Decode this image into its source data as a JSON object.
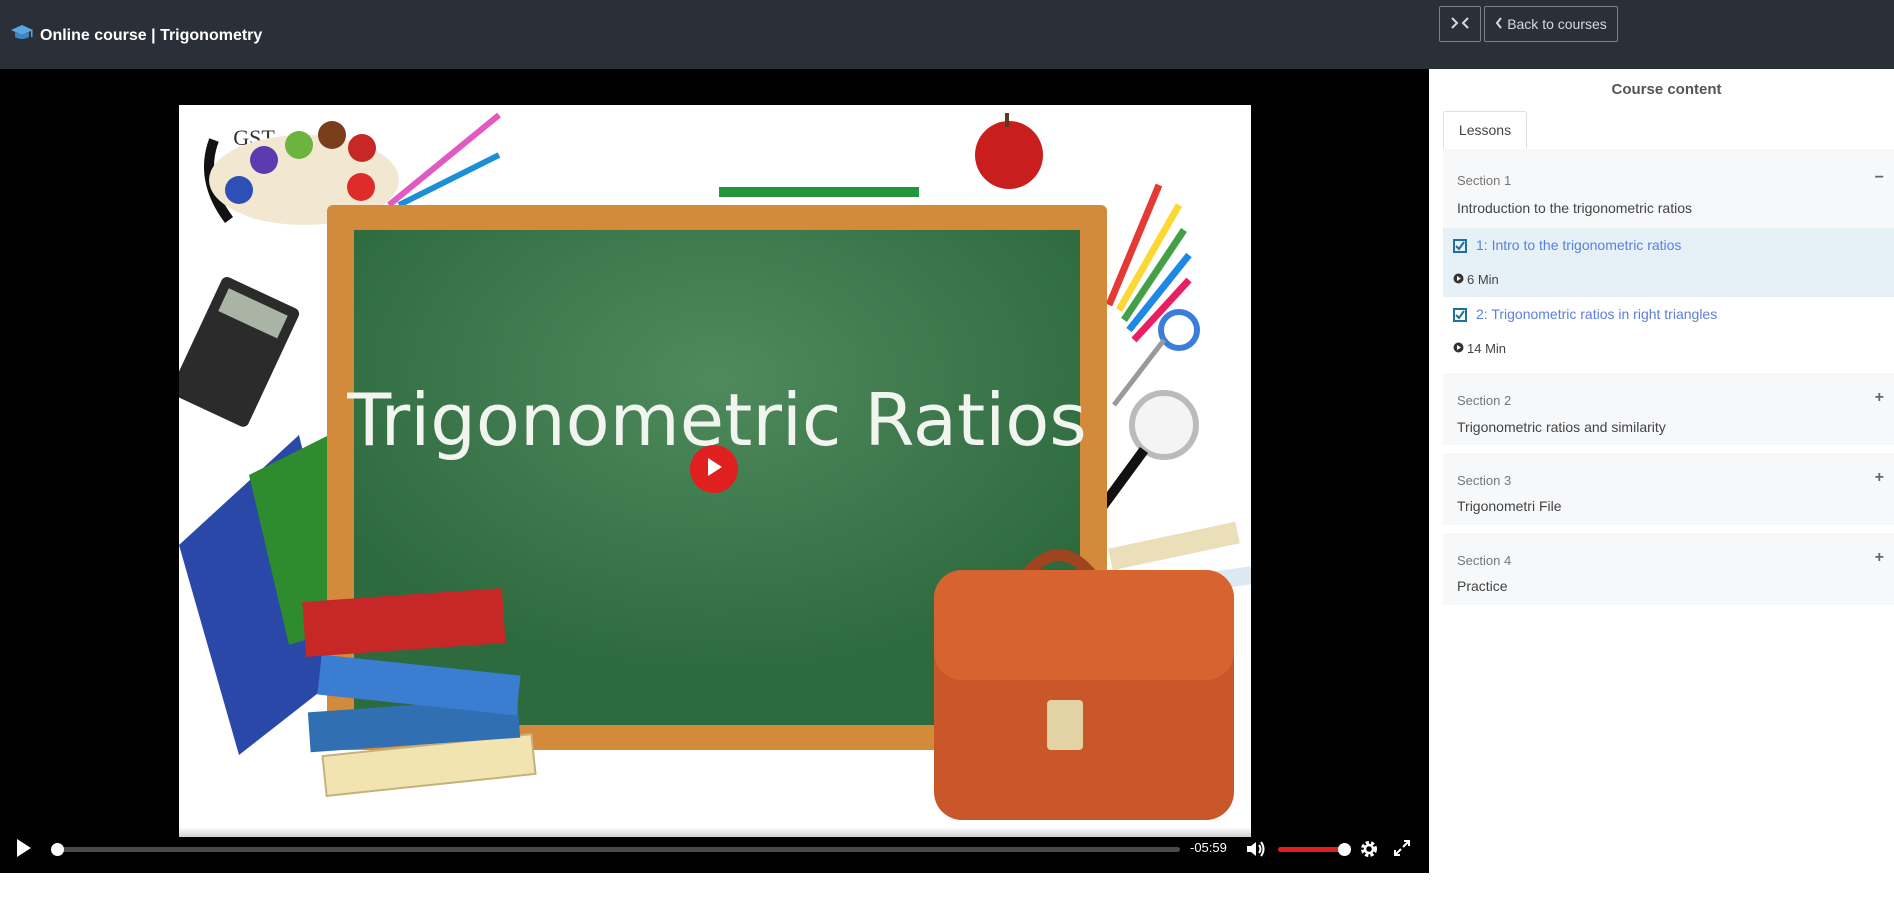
{
  "header": {
    "title": "Online course | Trigonometry",
    "back_label": "Back to courses"
  },
  "video": {
    "slide_title": "Trigonometric Ratios",
    "time_remaining": "-05:59",
    "progress": 0.0,
    "volume": 1.0
  },
  "sidebar": {
    "title": "Course content",
    "tabs": [
      {
        "label": "Lessons"
      }
    ],
    "sections": [
      {
        "label": "Section 1",
        "title": "Introduction to the trigonometric ratios",
        "expanded": true,
        "toggle": "−",
        "lessons": [
          {
            "title": "1: Intro to the trigonometric ratios",
            "duration": "6 Min",
            "completed": true,
            "active": true
          },
          {
            "title": "2: Trigonometric ratios in right triangles",
            "duration": "14 Min",
            "completed": true,
            "active": false
          }
        ]
      },
      {
        "label": "Section 2",
        "title": "Trigonometric ratios and similarity",
        "expanded": false,
        "toggle": "+"
      },
      {
        "label": "Section 3",
        "title": "Trigonometri File",
        "expanded": false,
        "toggle": "+"
      },
      {
        "label": "Section 4",
        "title": "Practice",
        "expanded": false,
        "toggle": "+"
      }
    ]
  },
  "colors": {
    "topbar": "#2b2f38",
    "accent_red": "#e0201f",
    "link_blue": "#5b7fde",
    "active_row": "#e6f1f7"
  }
}
